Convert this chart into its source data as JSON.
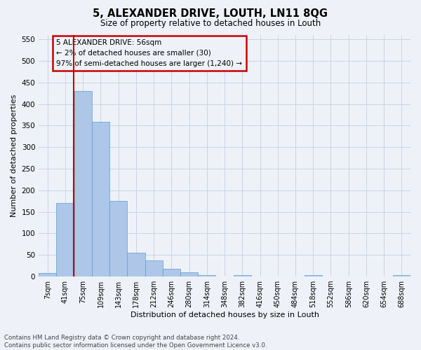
{
  "title": "5, ALEXANDER DRIVE, LOUTH, LN11 8QG",
  "subtitle": "Size of property relative to detached houses in Louth",
  "xlabel": "Distribution of detached houses by size in Louth",
  "ylabel": "Number of detached properties",
  "bin_labels": [
    "7sqm",
    "41sqm",
    "75sqm",
    "109sqm",
    "143sqm",
    "178sqm",
    "212sqm",
    "246sqm",
    "280sqm",
    "314sqm",
    "348sqm",
    "382sqm",
    "416sqm",
    "450sqm",
    "484sqm",
    "518sqm",
    "552sqm",
    "586sqm",
    "620sqm",
    "654sqm",
    "688sqm"
  ],
  "bar_heights": [
    8,
    170,
    430,
    358,
    175,
    55,
    38,
    18,
    10,
    3,
    0,
    4,
    0,
    0,
    0,
    4,
    0,
    0,
    0,
    0,
    4
  ],
  "bar_color": "#aec6e8",
  "bar_edge_color": "#5a9fd4",
  "grid_color": "#c8d4e8",
  "vline_color": "#cc0000",
  "vline_x": 1.47,
  "annotation_text": "5 ALEXANDER DRIVE: 56sqm\n← 2% of detached houses are smaller (30)\n97% of semi-detached houses are larger (1,240) →",
  "annotation_box_color": "#cc0000",
  "ylim": [
    0,
    560
  ],
  "yticks": [
    0,
    50,
    100,
    150,
    200,
    250,
    300,
    350,
    400,
    450,
    500,
    550
  ],
  "footer_text": "Contains HM Land Registry data © Crown copyright and database right 2024.\nContains public sector information licensed under the Open Government Licence v3.0.",
  "background_color": "#eef2f8"
}
